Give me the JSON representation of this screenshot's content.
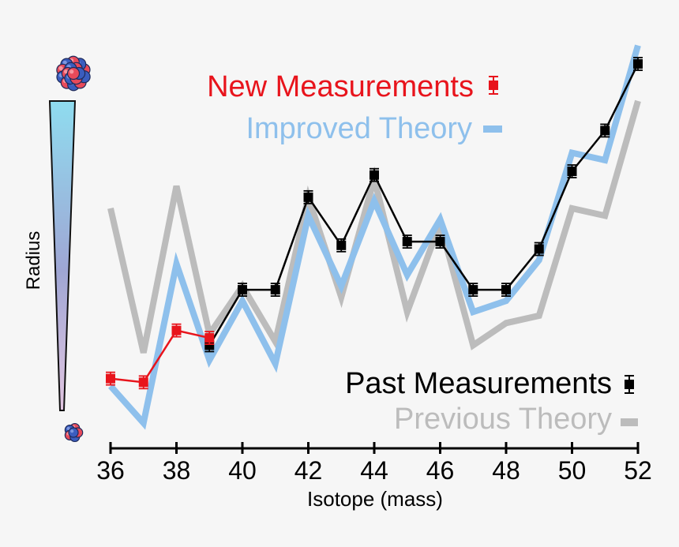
{
  "chart_data": {
    "type": "line",
    "xlabel": "Isotope (mass)",
    "ylabel": "Radius",
    "x_ticks": [
      36,
      38,
      40,
      42,
      44,
      46,
      48,
      50,
      52
    ],
    "xlim": [
      36,
      52
    ],
    "ylim": [
      0,
      100
    ],
    "grid": false,
    "legend_top": [
      {
        "label": "New Measurements",
        "color": "#e8141c",
        "marker": "square-errorbar"
      },
      {
        "label": "Improved Theory",
        "color": "#8ec0ec",
        "marker": "line"
      }
    ],
    "legend_bottom": [
      {
        "label": "Past Measurements",
        "color": "#000000",
        "marker": "square-errorbar"
      },
      {
        "label": "Previous Theory",
        "color": "#bcbcbc",
        "marker": "line"
      }
    ],
    "series": [
      {
        "name": "Previous Theory",
        "color": "#bcbcbc",
        "kind": "line",
        "x": [
          36,
          37,
          38,
          39,
          40,
          41,
          42,
          43,
          44,
          45,
          46,
          47,
          48,
          49,
          50,
          51,
          52
        ],
        "y": [
          61,
          22,
          67,
          27,
          40,
          25,
          64,
          37,
          69,
          33,
          57,
          24,
          30,
          32,
          61,
          59,
          90
        ]
      },
      {
        "name": "Improved Theory",
        "color": "#8ec0ec",
        "kind": "line",
        "x": [
          36,
          37,
          38,
          39,
          40,
          41,
          42,
          43,
          44,
          45,
          46,
          47,
          48,
          49,
          50,
          51,
          52
        ],
        "y": [
          13,
          3,
          46,
          20,
          36,
          19,
          59,
          40,
          63,
          43,
          58,
          33,
          36,
          47,
          76,
          74,
          105
        ]
      },
      {
        "name": "Past Measurements",
        "color": "#000000",
        "kind": "markers",
        "x": [
          39,
          40,
          41,
          42,
          43,
          44,
          45,
          46,
          47,
          48,
          49,
          50,
          51,
          52
        ],
        "y": [
          24,
          39,
          39,
          64,
          51,
          70,
          52,
          52,
          39,
          39,
          50,
          71,
          82,
          100
        ]
      },
      {
        "name": "New Measurements",
        "color": "#e8141c",
        "kind": "markers",
        "x": [
          36,
          37,
          38,
          39
        ],
        "y": [
          15,
          14,
          28,
          26
        ]
      }
    ]
  }
}
